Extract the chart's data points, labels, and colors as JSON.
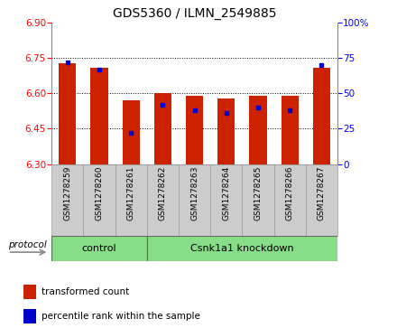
{
  "title": "GDS5360 / ILMN_2549885",
  "samples": [
    "GSM1278259",
    "GSM1278260",
    "GSM1278261",
    "GSM1278262",
    "GSM1278263",
    "GSM1278264",
    "GSM1278265",
    "GSM1278266",
    "GSM1278267"
  ],
  "transformed_count": [
    6.73,
    6.71,
    6.57,
    6.6,
    6.59,
    6.58,
    6.59,
    6.59,
    6.71
  ],
  "percentile_rank": [
    72,
    67,
    22,
    42,
    38,
    36,
    40,
    38,
    70
  ],
  "ylim_left": [
    6.3,
    6.9
  ],
  "ylim_right": [
    0,
    100
  ],
  "yticks_left": [
    6.3,
    6.45,
    6.6,
    6.75,
    6.9
  ],
  "yticks_right": [
    0,
    25,
    50,
    75,
    100
  ],
  "control_count": 3,
  "knockdown_count": 6,
  "bar_color": "#cc2200",
  "dot_color": "#0000cc",
  "protocol_label": "protocol",
  "legend_items": [
    {
      "label": "transformed count",
      "color": "#cc2200"
    },
    {
      "label": "percentile rank within the sample",
      "color": "#0000cc"
    }
  ],
  "bar_width": 0.55,
  "green_color": "#88dd88",
  "gray_color": "#cccccc",
  "title_fontsize": 10,
  "tick_fontsize": 7.5,
  "label_fontsize": 8
}
